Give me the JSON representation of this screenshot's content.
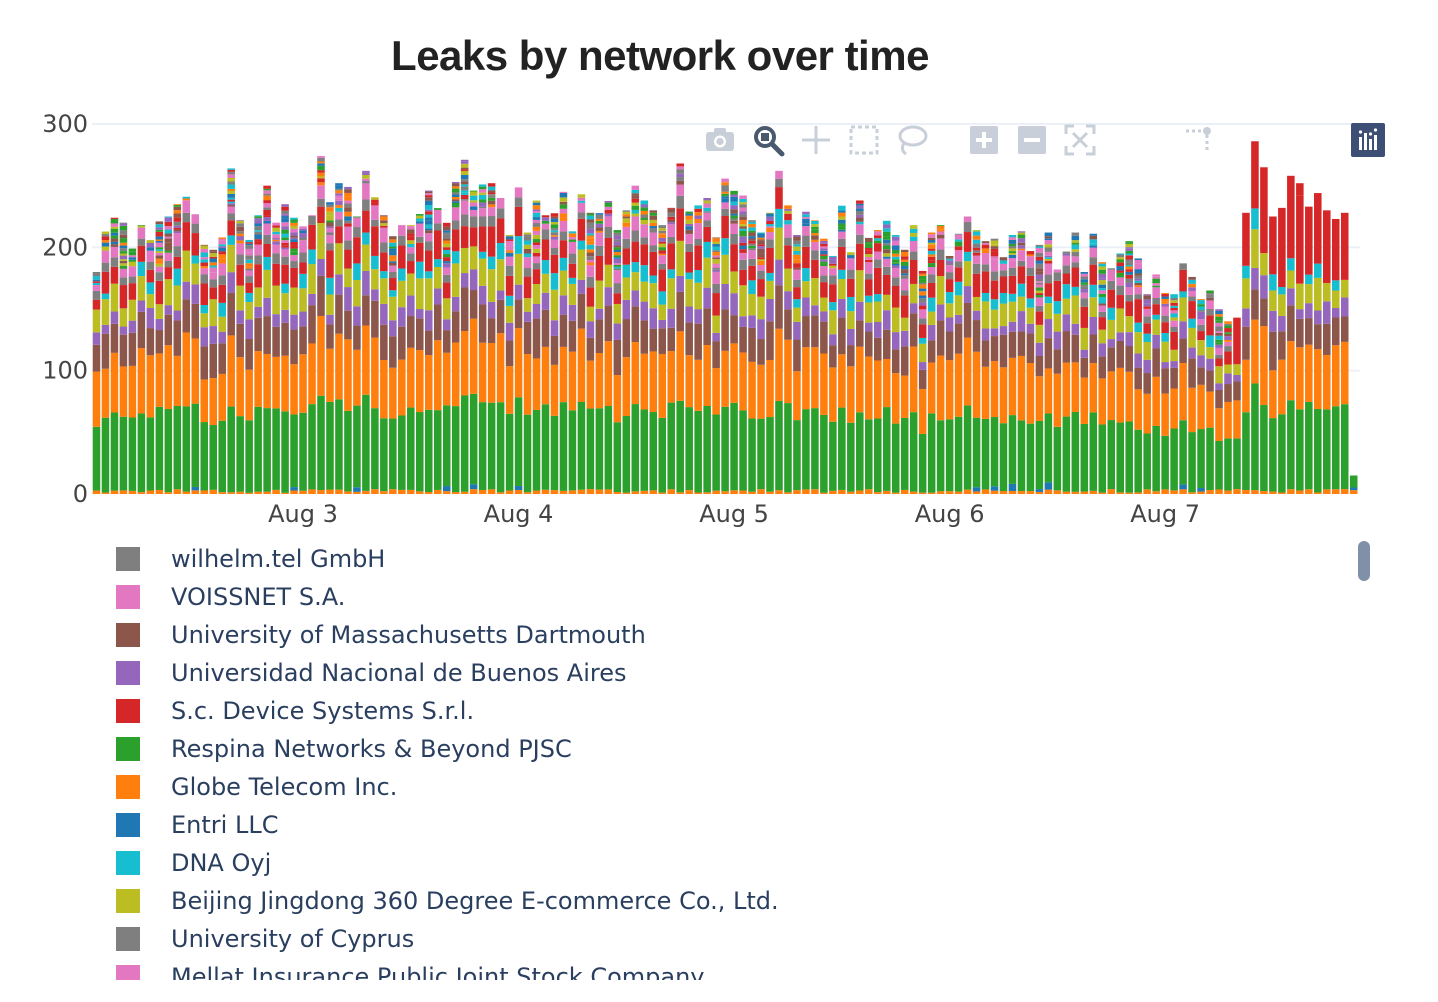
{
  "chart_data": {
    "type": "bar",
    "barmode": "stack",
    "title": "Leaks by network over time",
    "xlabel": "",
    "ylabel": "",
    "x_ticks": [
      "Aug 3",
      "Aug 4",
      "Aug 5",
      "Aug 6",
      "Aug 7"
    ],
    "y_ticks": [
      "0",
      "100",
      "200",
      "300"
    ],
    "ylim": [
      0,
      300
    ],
    "xlim": [
      "2020-08-02 00:30",
      "2020-08-07 02:30"
    ],
    "bin": "1 hour",
    "grid": true,
    "legend_position": "bottom",
    "bar_totals": [
      180,
      213,
      224,
      220,
      199,
      218,
      206,
      221,
      225,
      235,
      241,
      227,
      202,
      198,
      208,
      264,
      222,
      206,
      226,
      250,
      220,
      235,
      224,
      217,
      226,
      274,
      237,
      252,
      249,
      225,
      262,
      241,
      226,
      209,
      218,
      218,
      227,
      246,
      232,
      220,
      253,
      271,
      246,
      251,
      252,
      240,
      210,
      249,
      212,
      238,
      226,
      228,
      245,
      213,
      243,
      228,
      228,
      238,
      214,
      230,
      250,
      238,
      230,
      218,
      232,
      268,
      229,
      234,
      240,
      208,
      256,
      246,
      242,
      222,
      212,
      228,
      262,
      234,
      210,
      229,
      222,
      207,
      193,
      234,
      196,
      238,
      208,
      214,
      222,
      210,
      198,
      218,
      181,
      212,
      218,
      193,
      211,
      225,
      214,
      205,
      207,
      192,
      210,
      213,
      197,
      202,
      212,
      182,
      197,
      212,
      180,
      211,
      188,
      183,
      195,
      205,
      191,
      162,
      178,
      163,
      162,
      187,
      176,
      158,
      165,
      150,
      140,
      143,
      228,
      286,
      265,
      225,
      232,
      258,
      252,
      233,
      244,
      230,
      223,
      228,
      15
    ],
    "series": [
      {
        "name": "wilhelm.tel GmbH",
        "color": "#7f7f7f"
      },
      {
        "name": "VOISSNET S.A.",
        "color": "#e377c2"
      },
      {
        "name": "University of Massachusetts Dartmouth",
        "color": "#8c564b"
      },
      {
        "name": "Universidad Nacional de Buenos Aires",
        "color": "#9467bd"
      },
      {
        "name": "S.c. Device Systems S.r.l.",
        "color": "#d62728"
      },
      {
        "name": "Respina Networks & Beyond PJSC",
        "color": "#2ca02c"
      },
      {
        "name": "Globe Telecom Inc.",
        "color": "#ff7f0e"
      },
      {
        "name": "Entri LLC",
        "color": "#1f77b4"
      },
      {
        "name": "DNA Oyj",
        "color": "#17becf"
      },
      {
        "name": "Beijing Jingdong 360 Degree E-commerce Co., Ltd.",
        "color": "#bcbd22"
      },
      {
        "name": "University of Cyprus",
        "color": "#7f7f7f"
      },
      {
        "name": "Mellat Insurance Public Joint Stock Company",
        "color": "#e377c2"
      }
    ]
  },
  "modebar": {
    "buttons": [
      {
        "name": "camera-icon"
      },
      {
        "name": "zoom-icon"
      },
      {
        "name": "pan-icon"
      },
      {
        "name": "box-select-icon"
      },
      {
        "name": "lasso-select-icon"
      },
      {
        "name": "zoom-in-icon"
      },
      {
        "name": "zoom-out-icon"
      },
      {
        "name": "autoscale-icon"
      },
      {
        "name": "reset-axes-icon"
      },
      {
        "name": "spike-lines-icon"
      },
      {
        "name": "hover-closest-icon"
      },
      {
        "name": "hover-compare-icon"
      },
      {
        "name": "plotly-logo-icon"
      }
    ],
    "colors": {
      "inactive": "#c9cfd8",
      "active": "#4a5a6e",
      "logo_bg": "#3d4f74"
    }
  }
}
